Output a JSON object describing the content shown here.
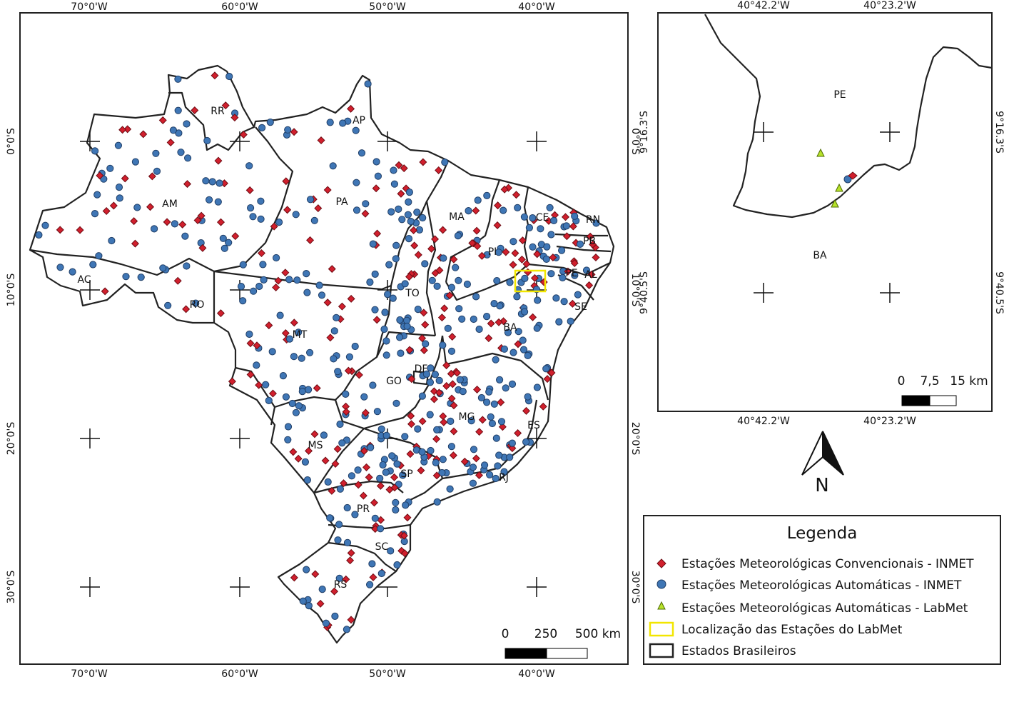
{
  "main_map": {
    "lon_labels": [
      "70°0'W",
      "60°0'W",
      "50°0'W",
      "40°0'W"
    ],
    "lat_labels": [
      "0°0'S",
      "10°0'S",
      "20°0'S",
      "30°0'S"
    ],
    "states": [
      {
        "name": "RR"
      },
      {
        "name": "AP"
      },
      {
        "name": "AM"
      },
      {
        "name": "PA"
      },
      {
        "name": "MA"
      },
      {
        "name": "CE"
      },
      {
        "name": "RN"
      },
      {
        "name": "PB"
      },
      {
        "name": "PI"
      },
      {
        "name": "PE"
      },
      {
        "name": "AL"
      },
      {
        "name": "SE"
      },
      {
        "name": "AC"
      },
      {
        "name": "RO"
      },
      {
        "name": "TO"
      },
      {
        "name": "BA"
      },
      {
        "name": "MT"
      },
      {
        "name": "DF"
      },
      {
        "name": "GO"
      },
      {
        "name": "MG"
      },
      {
        "name": "ES"
      },
      {
        "name": "MS"
      },
      {
        "name": "SP"
      },
      {
        "name": "RJ"
      },
      {
        "name": "PR"
      },
      {
        "name": "SC"
      },
      {
        "name": "RS"
      }
    ],
    "scalebar": {
      "labels": [
        "0",
        "250",
        "500 km"
      ]
    }
  },
  "inset_map": {
    "lon_labels": [
      "40°42.2'W",
      "40°23.2'W"
    ],
    "lat_labels": [
      "9°16.3'S",
      "9°40.5'S"
    ],
    "regions": [
      "PE",
      "BA"
    ],
    "scalebar": {
      "labels": [
        "0",
        "7,5",
        "15 km"
      ]
    }
  },
  "north_arrow": {
    "label": "N"
  },
  "legend": {
    "title": "Legenda",
    "items": [
      {
        "label": "Estações Meteorológicas Convencionais - INMET",
        "symbol": "red-diamond",
        "color": "#d11f2d"
      },
      {
        "label": "Estações Meteorológicas Automáticas - INMET",
        "symbol": "blue-circle",
        "color": "#3f76b5"
      },
      {
        "label": "Estações Meteorológicas Automáticas - LabMet",
        "symbol": "green-triangle",
        "color": "#b7e22a"
      },
      {
        "label": "Localização das Estações do LabMet",
        "symbol": "yellow-rectangle",
        "color": "#f2e600"
      },
      {
        "label": "Estados Brasileiros",
        "symbol": "black-rectangle",
        "color": "#222222"
      }
    ]
  }
}
